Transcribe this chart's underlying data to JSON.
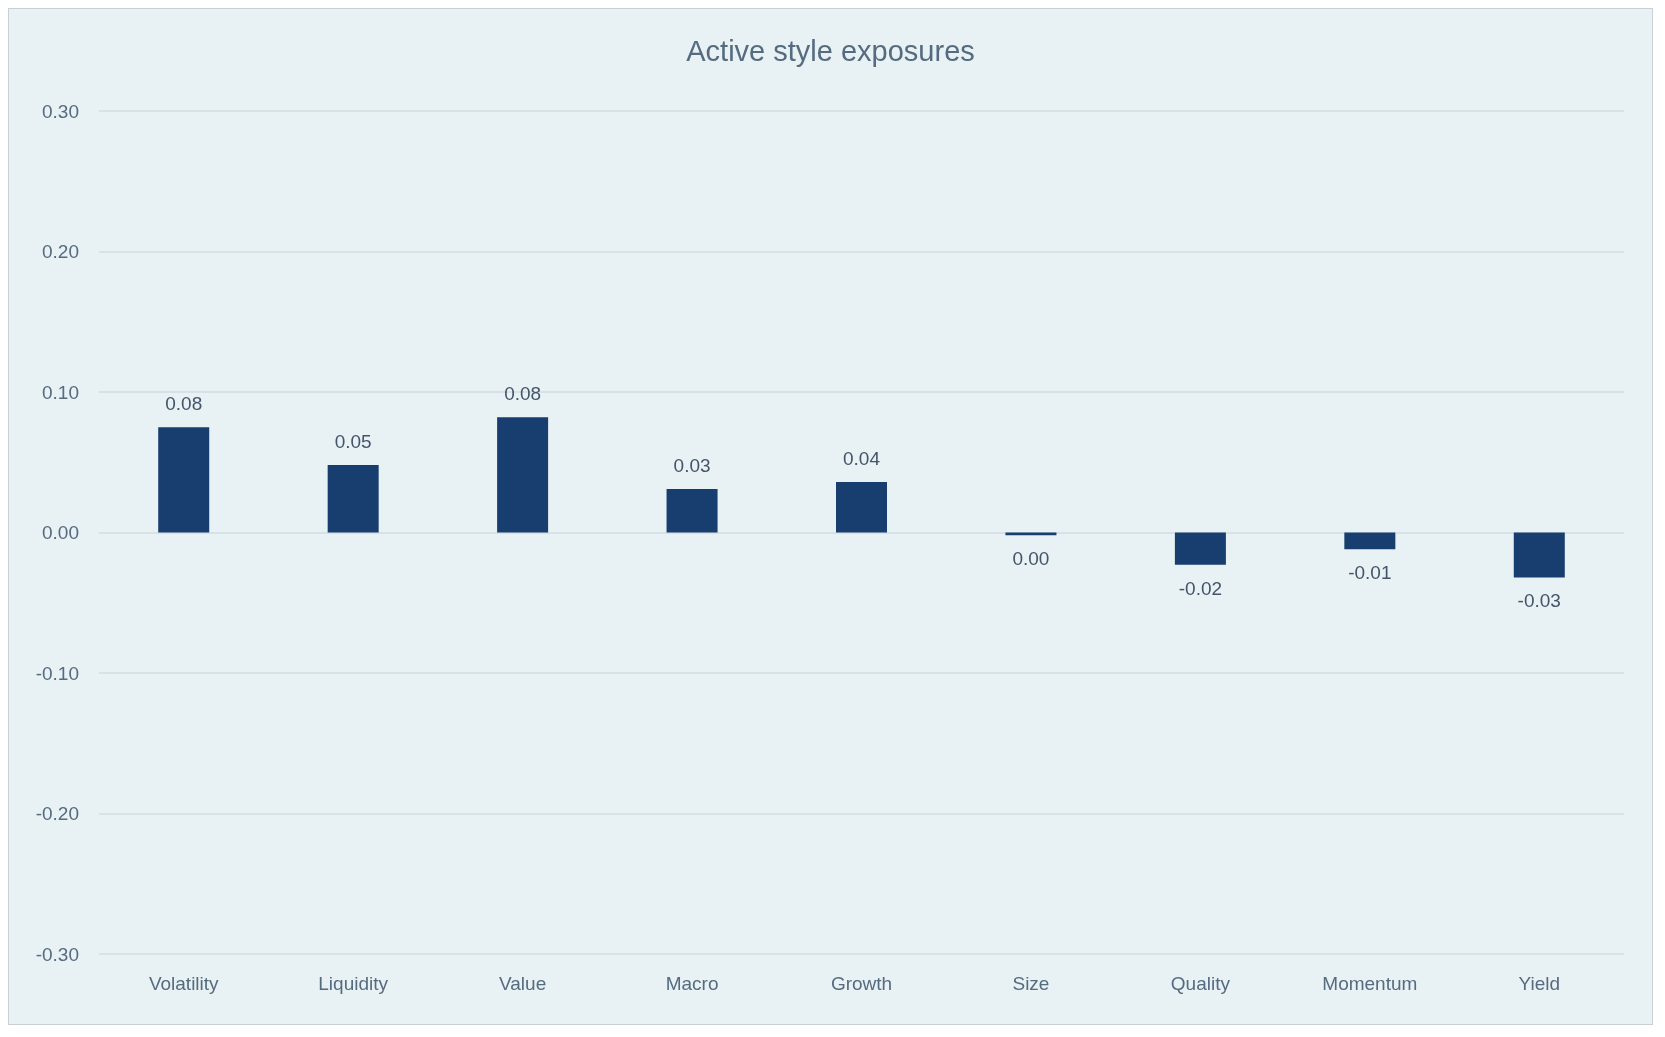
{
  "chart_data": {
    "type": "bar",
    "title": "Active style exposures",
    "categories": [
      "Volatility",
      "Liquidity",
      "Value",
      "Macro",
      "Growth",
      "Size",
      "Quality",
      "Momentum",
      "Yield"
    ],
    "values": [
      0.075,
      0.048,
      0.082,
      0.031,
      0.036,
      -0.002,
      -0.023,
      -0.012,
      -0.032
    ],
    "value_labels": [
      "0.08",
      "0.05",
      "0.08",
      "0.03",
      "0.04",
      "0.00",
      "-0.02",
      "-0.01",
      "-0.03"
    ],
    "color": "#173e6e",
    "ylim": [
      -0.3,
      0.3
    ],
    "yticks": [
      {
        "value": -0.3,
        "label": "-0.30"
      },
      {
        "value": -0.2,
        "label": "-0.20"
      },
      {
        "value": -0.1,
        "label": "-0.10"
      },
      {
        "value": 0,
        "label": "0.00"
      },
      {
        "value": 0.1,
        "label": "0.10"
      },
      {
        "value": 0.2,
        "label": "0.20"
      },
      {
        "value": 0.3,
        "label": "0.30"
      }
    ],
    "grid": "y"
  }
}
